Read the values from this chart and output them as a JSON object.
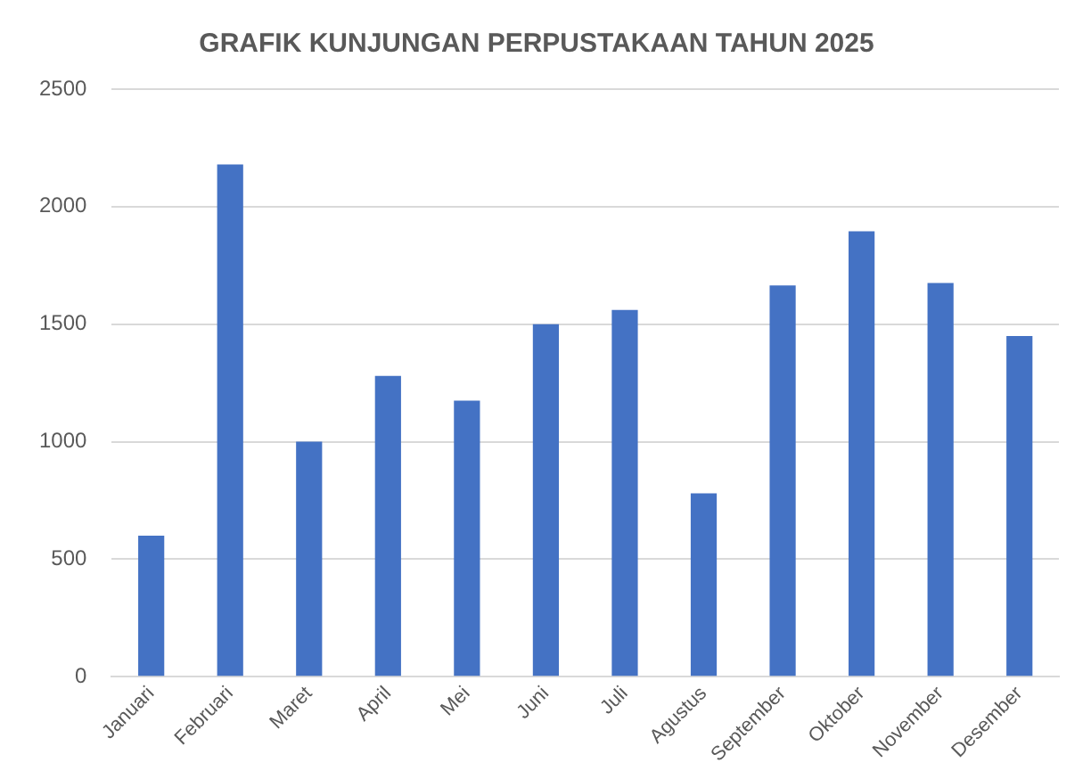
{
  "chart_data": {
    "type": "bar",
    "title": "GRAFIK KUNJUNGAN PERPUSTAKAAN TAHUN 2025",
    "categories": [
      "Januari",
      "Februari",
      "Maret",
      "April",
      "Mei",
      "Juni",
      "Juli",
      "Agustus",
      "September",
      "Oktober",
      "November",
      "Desember"
    ],
    "values": [
      600,
      2180,
      1000,
      1280,
      1175,
      1500,
      1560,
      780,
      1665,
      1895,
      1675,
      1450
    ],
    "color": "#4472c4",
    "ylim": [
      0,
      2500
    ],
    "yticks": [
      0,
      500,
      1000,
      1500,
      2000,
      2500
    ],
    "grid": "y",
    "legend": false
  }
}
